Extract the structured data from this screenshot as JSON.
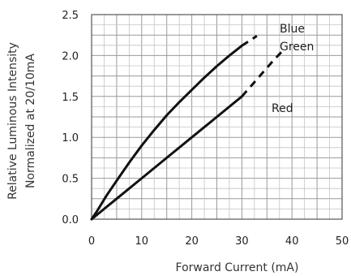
{
  "chart_data": {
    "type": "line",
    "xlabel": "Forward Current (mA)",
    "ylabel_lines": [
      "Relative Luminous Intensity",
      "Normalized at 20/10mA"
    ],
    "xlim": [
      0,
      50
    ],
    "ylim": [
      0,
      2.5
    ],
    "x_ticks": [
      0,
      10,
      20,
      30,
      40,
      50
    ],
    "x_tick_labels": [
      "0",
      "10",
      "20",
      "30",
      "40",
      "50"
    ],
    "y_ticks": [
      0,
      0.5,
      1.0,
      1.5,
      2.0,
      2.5
    ],
    "y_tick_labels": [
      "0.0",
      "0.5",
      "1.0",
      "1.5",
      "2.0",
      "2.5"
    ],
    "grid": true,
    "series": [
      {
        "name": "Blue Green",
        "label_lines": [
          "Blue",
          "Green"
        ],
        "solid": {
          "x": [
            0,
            1,
            2,
            3,
            5,
            7.5,
            10,
            12.5,
            15,
            17.5,
            20,
            22.5,
            25,
            27.5,
            30
          ],
          "y": [
            0,
            0.09,
            0.19,
            0.29,
            0.47,
            0.69,
            0.9,
            1.09,
            1.27,
            1.43,
            1.58,
            1.73,
            1.87,
            2.0,
            2.12
          ]
        },
        "dashed": {
          "x": [
            30,
            31.5,
            33
          ],
          "y": [
            2.12,
            2.18,
            2.24
          ]
        }
      },
      {
        "name": "Red",
        "label_lines": [
          "Red"
        ],
        "solid": {
          "x": [
            0,
            1,
            2,
            3,
            5,
            10,
            15,
            20,
            25,
            30
          ],
          "y": [
            0,
            0.05,
            0.1,
            0.15,
            0.25,
            0.5,
            0.75,
            1.0,
            1.25,
            1.5
          ]
        },
        "dashed": {
          "x": [
            30,
            32,
            34,
            36,
            38
          ],
          "y": [
            1.5,
            1.64,
            1.78,
            1.92,
            2.05
          ]
        }
      }
    ]
  }
}
